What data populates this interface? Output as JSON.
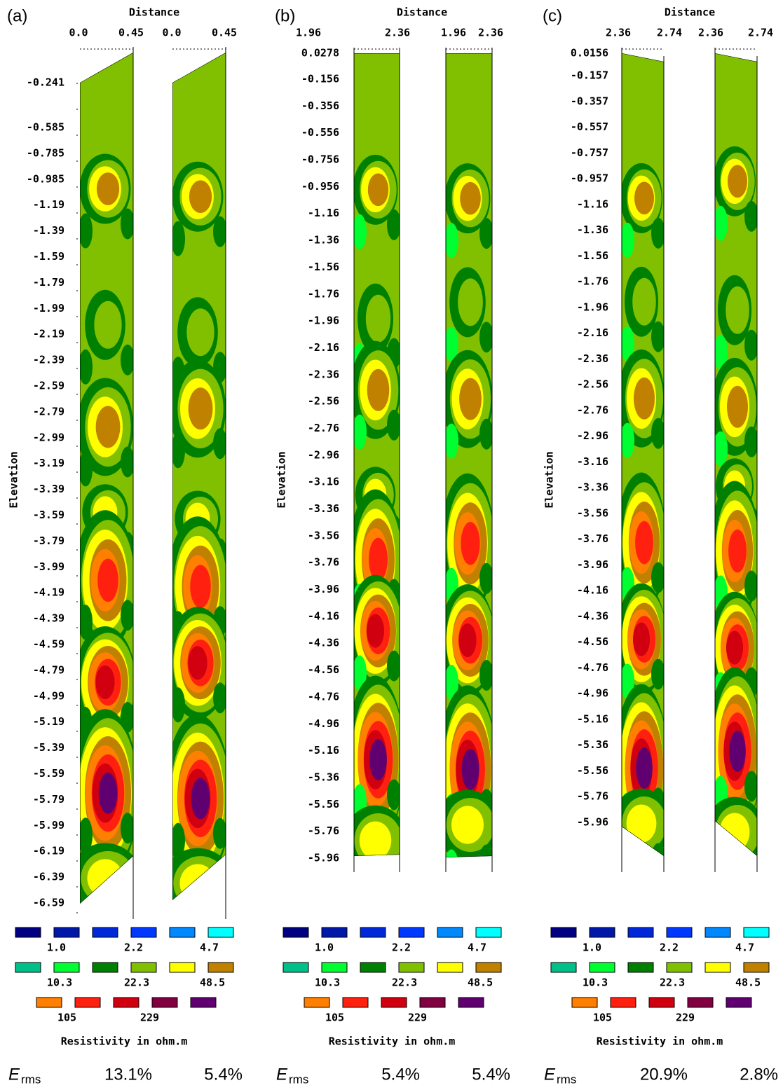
{
  "panels": [
    {
      "label": "(a)",
      "x_title": "Distance",
      "x_ticks": [
        "0.0",
        "0.45",
        "0.0",
        "0.45"
      ],
      "y_title": "Elevation",
      "y_ticks": [
        "-0.241",
        "-0.585",
        "-0.785",
        "-0.985",
        "-1.19",
        "-1.39",
        "-1.59",
        "-1.79",
        "-1.99",
        "-2.19",
        "-2.39",
        "-2.59",
        "-2.79",
        "-2.99",
        "-3.19",
        "-3.39",
        "-3.59",
        "-3.79",
        "-3.99",
        "-4.19",
        "-4.39",
        "-4.59",
        "-4.79",
        "-4.99",
        "-5.19",
        "-5.39",
        "-5.59",
        "-5.79",
        "-5.99",
        "-6.19",
        "-6.39",
        "-6.59"
      ],
      "legend_labels": [
        "1.0",
        "2.2",
        "4.7",
        "10.3",
        "22.3",
        "48.5",
        "105",
        "229"
      ],
      "legend_title": "Resistivity in ohm.m",
      "erms_symbol": "E",
      "erms_sub": "rms",
      "erms_values": [
        "13.1%",
        "5.4%"
      ]
    },
    {
      "label": "(b)",
      "x_title": "Distance",
      "x_ticks": [
        "1.96",
        "2.36",
        "1.96",
        "2.36"
      ],
      "y_title": "Elevation",
      "y_ticks": [
        "0.0278",
        "-0.156",
        "-0.356",
        "-0.556",
        "-0.756",
        "-0.956",
        "-1.16",
        "-1.36",
        "-1.56",
        "-1.76",
        "-1.96",
        "-2.16",
        "-2.36",
        "-2.56",
        "-2.76",
        "-2.96",
        "-3.16",
        "-3.36",
        "-3.56",
        "-3.76",
        "-3.96",
        "-4.16",
        "-4.36",
        "-4.56",
        "-4.76",
        "-4.96",
        "-5.16",
        "-5.36",
        "-5.56",
        "-5.76",
        "-5.96"
      ],
      "legend_labels": [
        "1.0",
        "2.2",
        "4.7",
        "10.3",
        "22.3",
        "48.5",
        "105",
        "229"
      ],
      "legend_title": "Resistivity in ohm.m",
      "erms_symbol": "E",
      "erms_sub": "rms",
      "erms_values": [
        "5.4%",
        "5.4%"
      ]
    },
    {
      "label": "(c)",
      "x_title": "Distance",
      "x_ticks": [
        "2.36",
        "2.74",
        "2.36",
        "2.74"
      ],
      "y_title": "Elevation",
      "y_ticks": [
        "0.0156",
        "-0.157",
        "-0.357",
        "-0.557",
        "-0.757",
        "-0.957",
        "-1.16",
        "-1.36",
        "-1.56",
        "-1.76",
        "-1.96",
        "-2.16",
        "-2.36",
        "-2.56",
        "-2.76",
        "-2.96",
        "-3.16",
        "-3.36",
        "-3.56",
        "-3.76",
        "-3.96",
        "-4.16",
        "-4.36",
        "-4.56",
        "-4.76",
        "-4.96",
        "-5.16",
        "-5.36",
        "-5.56",
        "-5.76",
        "-5.96"
      ],
      "legend_labels": [
        "1.0",
        "2.2",
        "4.7",
        "10.3",
        "22.3",
        "48.5",
        "105",
        "229"
      ],
      "legend_title": "Resistivity in ohm.m",
      "erms_symbol": "E",
      "erms_sub": "rms",
      "erms_values": [
        "20.9%",
        "2.8%"
      ]
    }
  ],
  "legend_colors": [
    "#000080",
    "#0018a8",
    "#0028d8",
    "#0038ff",
    "#0088ff",
    "#00ffff",
    "#00c088",
    "#00ff30",
    "#008000",
    "#80c000",
    "#ffff00",
    "#c08000",
    "#ff8000",
    "#ff2010",
    "#d00010",
    "#800040",
    "#600070"
  ]
}
